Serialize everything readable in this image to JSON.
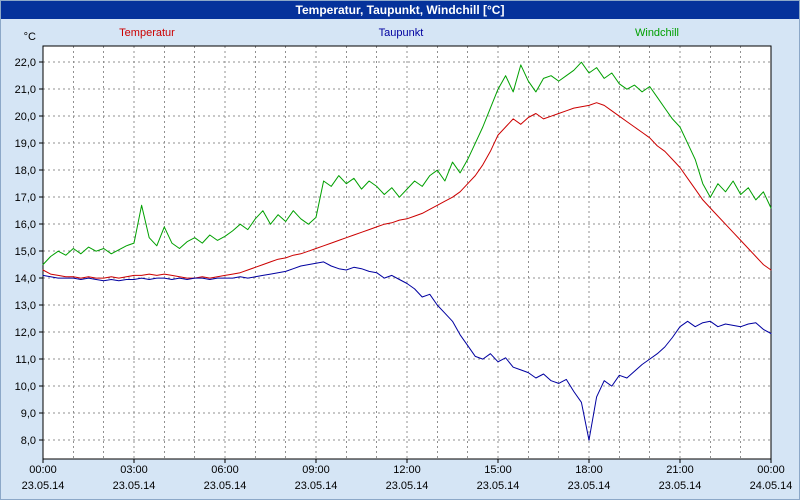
{
  "window": {
    "title": "Temperatur, Taupunkt, Windchill [°C]"
  },
  "colors": {
    "titlebar": "#05329b",
    "titlebar_text": "#ffffff",
    "background": "#d5e5f5",
    "plot_background": "#ffffff",
    "grid": "#909090",
    "axis_text": "#000000",
    "temperatur": "#cc0000",
    "taupunkt": "#0000a0",
    "windchill": "#00a000"
  },
  "legend": [
    {
      "label": "Temperatur",
      "color": "#cc0000"
    },
    {
      "label": "Taupunkt",
      "color": "#0000a0"
    },
    {
      "label": "Windchill",
      "color": "#00a000"
    }
  ],
  "chart_data": {
    "type": "line",
    "title": "Temperatur, Taupunkt, Windchill [°C]",
    "ylabel": "°C",
    "xlabel": "",
    "legend_position": "top",
    "grid": "dashed, vertical every 1 h, horizontal every 1.0 °C",
    "ylim": [
      7.3,
      22.6
    ],
    "xlim_hours": [
      0,
      24
    ],
    "x_start_hour": 0,
    "x_step_hours": 0.25,
    "y_ticks": [
      {
        "value": 22,
        "label": "22,0"
      },
      {
        "value": 21,
        "label": "21,0"
      },
      {
        "value": 20,
        "label": "20,0"
      },
      {
        "value": 19,
        "label": "19,0"
      },
      {
        "value": 18,
        "label": "18,0"
      },
      {
        "value": 17,
        "label": "17,0"
      },
      {
        "value": 16,
        "label": "16,0"
      },
      {
        "value": 15,
        "label": "15,0"
      },
      {
        "value": 14,
        "label": "14,0"
      },
      {
        "value": 13,
        "label": "13,0"
      },
      {
        "value": 12,
        "label": "12,0"
      },
      {
        "value": 11,
        "label": "11,0"
      },
      {
        "value": 10,
        "label": "10,0"
      },
      {
        "value": 9,
        "label": "9,0"
      },
      {
        "value": 8,
        "label": "8,0"
      }
    ],
    "x_ticks": [
      {
        "hour": 0,
        "time": "00:00",
        "date": "23.05.14"
      },
      {
        "hour": 3,
        "time": "03:00",
        "date": "23.05.14"
      },
      {
        "hour": 6,
        "time": "06:00",
        "date": "23.05.14"
      },
      {
        "hour": 9,
        "time": "09:00",
        "date": "23.05.14"
      },
      {
        "hour": 12,
        "time": "12:00",
        "date": "23.05.14"
      },
      {
        "hour": 15,
        "time": "15:00",
        "date": "23.05.14"
      },
      {
        "hour": 18,
        "time": "18:00",
        "date": "23.05.14"
      },
      {
        "hour": 21,
        "time": "21:00",
        "date": "23.05.14"
      },
      {
        "hour": 24,
        "time": "00:00",
        "date": "24.05.14"
      }
    ],
    "series": [
      {
        "name": "Temperatur",
        "color": "#cc0000",
        "values": [
          14.3,
          14.15,
          14.1,
          14.05,
          14.05,
          14.0,
          14.05,
          14.0,
          14.0,
          14.05,
          14.0,
          14.05,
          14.1,
          14.1,
          14.15,
          14.1,
          14.15,
          14.1,
          14.05,
          14.0,
          14.0,
          14.05,
          14.0,
          14.05,
          14.1,
          14.15,
          14.2,
          14.3,
          14.4,
          14.5,
          14.6,
          14.7,
          14.75,
          14.85,
          14.9,
          15.0,
          15.1,
          15.2,
          15.3,
          15.4,
          15.5,
          15.6,
          15.7,
          15.8,
          15.9,
          16.0,
          16.05,
          16.15,
          16.2,
          16.3,
          16.4,
          16.55,
          16.7,
          16.85,
          17.0,
          17.2,
          17.5,
          17.8,
          18.2,
          18.7,
          19.3,
          19.6,
          19.9,
          19.7,
          19.95,
          20.1,
          19.9,
          20.0,
          20.1,
          20.2,
          20.3,
          20.35,
          20.4,
          20.5,
          20.4,
          20.2,
          20.0,
          19.8,
          19.6,
          19.4,
          19.2,
          18.9,
          18.7,
          18.4,
          18.1,
          17.7,
          17.3,
          16.9,
          16.6,
          16.3,
          16.0,
          15.7,
          15.4,
          15.1,
          14.8,
          14.5,
          14.3
        ]
      },
      {
        "name": "Taupunkt",
        "color": "#0000a0",
        "values": [
          14.1,
          14.05,
          14.0,
          14.0,
          14.0,
          13.95,
          14.0,
          13.95,
          13.9,
          13.95,
          13.9,
          13.95,
          13.95,
          14.0,
          13.95,
          14.0,
          14.0,
          13.95,
          14.0,
          13.95,
          14.0,
          14.0,
          13.95,
          14.0,
          14.0,
          14.0,
          14.05,
          14.0,
          14.05,
          14.1,
          14.15,
          14.2,
          14.25,
          14.35,
          14.45,
          14.5,
          14.55,
          14.6,
          14.45,
          14.35,
          14.3,
          14.4,
          14.35,
          14.25,
          14.2,
          14.0,
          14.1,
          13.95,
          13.8,
          13.6,
          13.3,
          13.4,
          13.0,
          12.7,
          12.4,
          11.9,
          11.5,
          11.1,
          11.0,
          11.2,
          10.9,
          11.05,
          10.7,
          10.6,
          10.5,
          10.3,
          10.45,
          10.2,
          10.1,
          10.25,
          9.8,
          9.4,
          8.0,
          9.6,
          10.2,
          10.0,
          10.4,
          10.3,
          10.55,
          10.8,
          11.0,
          11.2,
          11.45,
          11.8,
          12.2,
          12.4,
          12.2,
          12.35,
          12.4,
          12.2,
          12.3,
          12.25,
          12.2,
          12.3,
          12.35,
          12.1,
          11.95
        ]
      },
      {
        "name": "Windchill",
        "color": "#00a000",
        "values": [
          14.5,
          14.8,
          15.0,
          14.85,
          15.1,
          14.9,
          15.15,
          15.0,
          15.1,
          14.9,
          15.05,
          15.2,
          15.3,
          16.7,
          15.5,
          15.2,
          15.9,
          15.3,
          15.1,
          15.35,
          15.5,
          15.3,
          15.6,
          15.4,
          15.55,
          15.75,
          16.0,
          15.8,
          16.2,
          16.5,
          16.0,
          16.35,
          16.1,
          16.5,
          16.2,
          16.0,
          16.25,
          17.6,
          17.4,
          17.8,
          17.5,
          17.7,
          17.3,
          17.6,
          17.4,
          17.1,
          17.35,
          17.0,
          17.3,
          17.6,
          17.4,
          17.8,
          18.0,
          17.6,
          18.3,
          17.9,
          18.4,
          19.0,
          19.6,
          20.3,
          21.0,
          21.5,
          20.9,
          21.9,
          21.3,
          20.9,
          21.4,
          21.5,
          21.3,
          21.5,
          21.7,
          22.0,
          21.6,
          21.8,
          21.4,
          21.6,
          21.2,
          21.0,
          21.15,
          20.9,
          21.1,
          20.7,
          20.3,
          19.9,
          19.6,
          19.0,
          18.4,
          17.5,
          17.0,
          17.5,
          17.2,
          17.6,
          17.1,
          17.35,
          16.9,
          17.2,
          16.6
        ]
      }
    ]
  }
}
